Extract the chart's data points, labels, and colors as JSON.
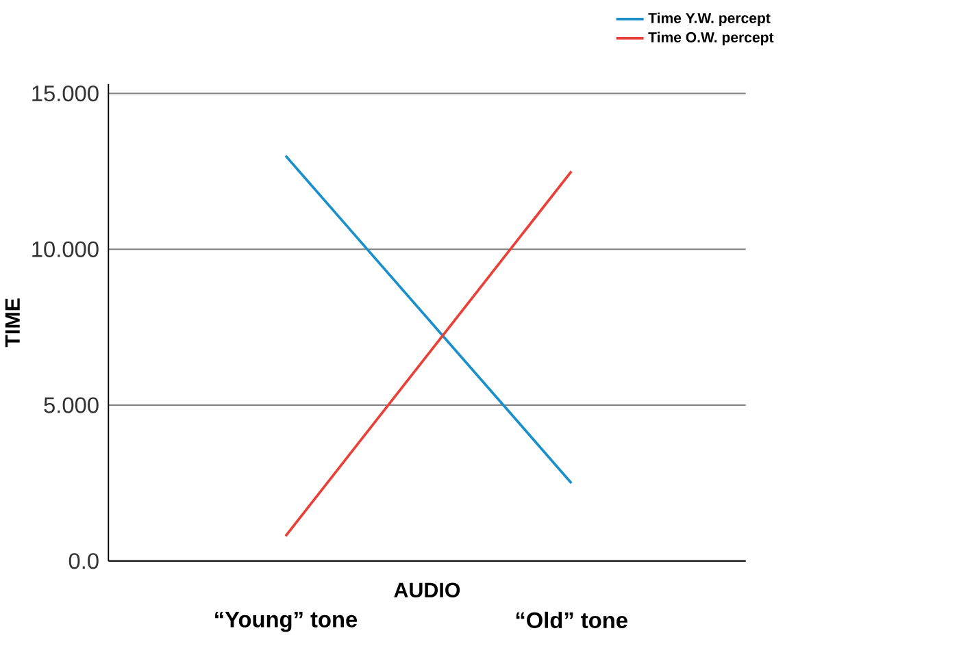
{
  "chart_data": {
    "type": "line",
    "xlabel": "AUDIO",
    "ylabel": "TIME",
    "categories": [
      "“Young” tone",
      "“Old” tone"
    ],
    "series": [
      {
        "name": "Time Y.W. percept",
        "color": "#1a8fc9",
        "values": [
          13.0,
          2.5
        ]
      },
      {
        "name": "Time O.W. percept",
        "color": "#e8413a",
        "values": [
          0.8,
          12.5
        ]
      }
    ],
    "ylim": [
      0,
      15.3
    ],
    "yticks": [
      {
        "value": 0,
        "label": "0.0"
      },
      {
        "value": 5,
        "label": "5.000"
      },
      {
        "value": 10,
        "label": "10.000"
      },
      {
        "value": 15,
        "label": "15.000"
      }
    ],
    "grid": "y",
    "legend": "top right",
    "marker": "none",
    "line_style": "solid"
  }
}
